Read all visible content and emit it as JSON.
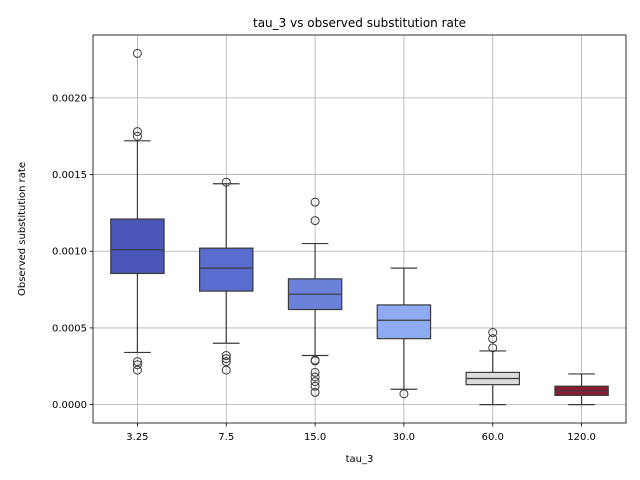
{
  "chart_data": {
    "type": "box",
    "title": "tau_3 vs observed substitution rate",
    "xlabel": "tau_3",
    "ylabel": "Observed substitution rate",
    "ylim": [
      -0.00012,
      0.00241
    ],
    "yticks": [
      "0.0000",
      "0.0005",
      "0.0010",
      "0.0015",
      "0.0020"
    ],
    "ytick_values": [
      0.0,
      0.0005,
      0.001,
      0.0015,
      0.002
    ],
    "grid": true,
    "categories": [
      "3.25",
      "7.5",
      "15.0",
      "30.0",
      "60.0",
      "120.0"
    ],
    "boxes": [
      {
        "category": "3.25",
        "color": "#4a56b8",
        "whisker_low": 0.00034,
        "q1": 0.000855,
        "median": 0.00101,
        "q3": 0.00121,
        "whisker_high": 0.00172,
        "outliers": [
          0.00229,
          0.00178,
          0.00175,
          0.00028,
          0.00026,
          0.000225
        ]
      },
      {
        "category": "7.5",
        "color": "#5a6ccd",
        "whisker_low": 0.0004,
        "q1": 0.00074,
        "median": 0.00089,
        "q3": 0.00102,
        "whisker_high": 0.00144,
        "outliers": [
          0.00145,
          0.00032,
          0.0003,
          0.00028,
          0.000225
        ]
      },
      {
        "category": "15.0",
        "color": "#6a82da",
        "whisker_low": 0.00032,
        "q1": 0.00062,
        "median": 0.00072,
        "q3": 0.00082,
        "whisker_high": 0.00105,
        "outliers": [
          0.00132,
          0.0012,
          0.00029,
          0.000285,
          0.00021,
          0.00018,
          0.00015,
          0.00012,
          8e-05
        ]
      },
      {
        "category": "30.0",
        "color": "#8eaaf0",
        "whisker_low": 0.0001,
        "q1": 0.00043,
        "median": 0.00055,
        "q3": 0.00065,
        "whisker_high": 0.00089,
        "outliers": [
          7e-05
        ]
      },
      {
        "category": "60.0",
        "color": "#dcdcdc",
        "whisker_low": 0.0,
        "q1": 0.00013,
        "median": 0.00017,
        "q3": 0.00021,
        "whisker_high": 0.00035,
        "outliers": [
          0.00047,
          0.00043,
          0.00037
        ]
      },
      {
        "category": "120.0",
        "color": "#8b1a35",
        "whisker_low": 0.0,
        "q1": 6e-05,
        "median": 9e-05,
        "q3": 0.00012,
        "whisker_high": 0.0002,
        "outliers": []
      }
    ]
  }
}
